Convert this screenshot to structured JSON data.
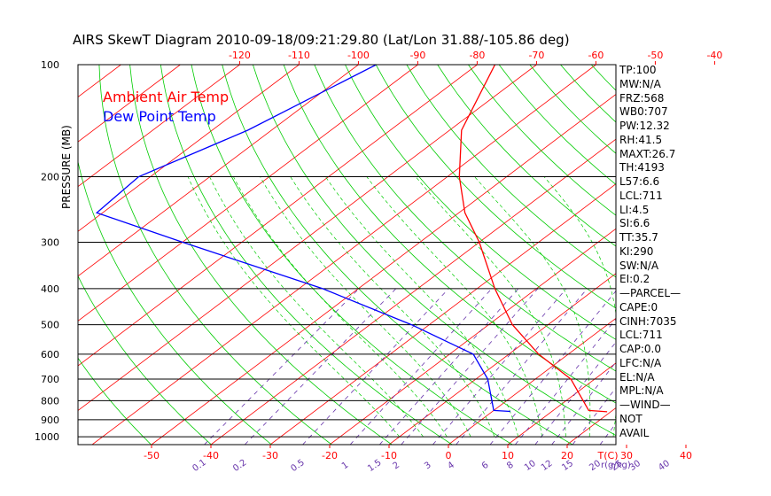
{
  "chart_data": {
    "type": "line",
    "title": "AIRS SkewT Diagram 2010-09-18/09:21:29.80 (Lat/Lon 31.88/-105.86 deg)",
    "ylabel": "PRESSURE (MB)",
    "xlabel": "T(C)",
    "mixing_ratio_unit": "r(g/kg)",
    "legend": [
      {
        "name": "Ambient Air Temp",
        "color": "#ff0000"
      },
      {
        "name": "Dew Point Temp",
        "color": "#0000ff"
      }
    ],
    "pressure_ticks": [
      100,
      200,
      300,
      400,
      500,
      600,
      700,
      800,
      900,
      1000
    ],
    "top_temp_ticks": [
      -120,
      -110,
      -100,
      -90,
      -80,
      -70,
      -60,
      -50,
      -40
    ],
    "bottom_temp_ticks": [
      -50,
      -40,
      -30,
      -20,
      -10,
      0,
      10,
      20,
      30,
      40
    ],
    "mixing_ratio_labels": [
      "0.1",
      "0.2",
      "0.5",
      "1",
      "1.5",
      "2",
      "3",
      "4",
      "6",
      "8",
      "10",
      "12",
      "15",
      "20",
      "25",
      "30",
      "40"
    ],
    "series": [
      {
        "name": "Ambient Air Temp",
        "color": "#ff0000",
        "points": [
          {
            "p": 100,
            "t": -77
          },
          {
            "p": 150,
            "t": -68
          },
          {
            "p": 200,
            "t": -58
          },
          {
            "p": 250,
            "t": -49
          },
          {
            "p": 300,
            "t": -40
          },
          {
            "p": 400,
            "t": -27
          },
          {
            "p": 500,
            "t": -16
          },
          {
            "p": 600,
            "t": -5
          },
          {
            "p": 700,
            "t": 6
          },
          {
            "p": 850,
            "t": 16
          },
          {
            "p": 857,
            "t": 19.4
          }
        ]
      },
      {
        "name": "Dew Point Temp",
        "color": "#0000ff",
        "points": [
          {
            "p": 100,
            "t": -97
          },
          {
            "p": 150,
            "t": -104
          },
          {
            "p": 200,
            "t": -112
          },
          {
            "p": 250,
            "t": -111
          },
          {
            "p": 300,
            "t": -90
          },
          {
            "p": 400,
            "t": -56
          },
          {
            "p": 500,
            "t": -33
          },
          {
            "p": 600,
            "t": -16
          },
          {
            "p": 700,
            "t": -8
          },
          {
            "p": 850,
            "t": 0
          },
          {
            "p": 855,
            "t": 3
          }
        ]
      }
    ]
  },
  "indices": [
    "TP:100",
    "MW:N/A",
    "FRZ:568",
    "WB0:707",
    "PW:12.32",
    "RH:41.5",
    "MAXT:26.7",
    "TH:4193",
    "L57:6.6",
    "LCL:711",
    "LI:4.5",
    "SI:6.6",
    "TT:35.7",
    "KI:290",
    "SW:N/A",
    "EI:0.2",
    "—PARCEL—",
    "CAPE:0",
    "CINH:7035",
    "LCL:711",
    "CAP:0.0",
    "LFC:N/A",
    "EL:N/A",
    "MPL:N/A",
    "—WIND—",
    "NOT",
    "AVAIL"
  ]
}
